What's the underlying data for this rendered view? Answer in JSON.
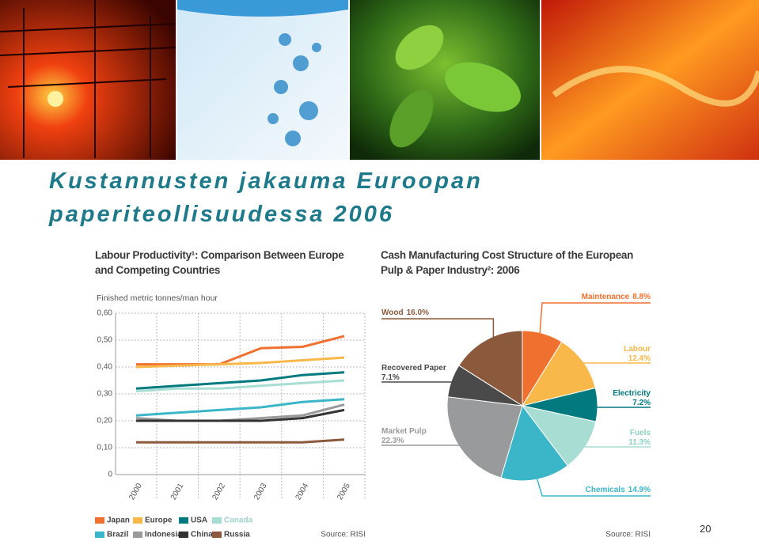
{
  "slide": {
    "title": "Kustannusten jakauma Euroopan paperiteollisuudessa 2006",
    "page_number": "20"
  },
  "chart_data": [
    {
      "type": "line",
      "title": "Labour Productivity¹: Comparison Between Europe and Competing Countries",
      "y_label": "Finished metric tonnes/man hour",
      "categories": [
        "2000",
        "2001",
        "2002",
        "2003",
        "2004",
        "2005"
      ],
      "ylim": [
        0,
        0.6
      ],
      "yticks": [
        0,
        {
          "value": 0.1,
          "label": "0,10"
        },
        {
          "value": 0.2,
          "label": "0,20"
        },
        {
          "value": 0.3,
          "label": "0,30"
        },
        {
          "value": 0.4,
          "label": "0,40"
        },
        {
          "value": 0.5,
          "label": "0,50"
        },
        {
          "value": 0.6,
          "label": "0,60"
        }
      ],
      "grid": true,
      "series": [
        {
          "name": "Japan",
          "color": "#f07030",
          "values": [
            0.41,
            0.41,
            0.41,
            0.47,
            0.475,
            0.515
          ]
        },
        {
          "name": "Europe",
          "color": "#f8b84a",
          "values": [
            0.4,
            0.405,
            0.41,
            0.415,
            0.425,
            0.435
          ]
        },
        {
          "name": "USA",
          "color": "#007a7e",
          "values": [
            0.32,
            0.33,
            0.34,
            0.35,
            0.37,
            0.38
          ]
        },
        {
          "name": "Canada",
          "color": "#a8ddd4",
          "values": [
            0.31,
            0.32,
            0.32,
            0.33,
            0.34,
            0.35
          ]
        },
        {
          "name": "Brazil",
          "color": "#3ab6c8",
          "values": [
            0.22,
            0.23,
            0.24,
            0.25,
            0.27,
            0.28
          ]
        },
        {
          "name": "Indonesia",
          "color": "#999a9c",
          "values": [
            0.21,
            0.2,
            0.2,
            0.21,
            0.22,
            0.26
          ]
        },
        {
          "name": "China",
          "color": "#333333",
          "values": [
            0.2,
            0.2,
            0.2,
            0.2,
            0.21,
            0.24
          ]
        },
        {
          "name": "Russia",
          "color": "#8b5a3c",
          "values": [
            0.12,
            0.12,
            0.12,
            0.12,
            0.12,
            0.13
          ]
        }
      ],
      "source": "Source: RISI"
    },
    {
      "type": "pie",
      "title": "Cash Manufacturing Cost Structure of the European Pulp & Paper Industry²: 2006",
      "categories": [
        "Maintenance",
        "Labour",
        "Electricity",
        "Fuels",
        "Chemicals",
        "Market Pulp",
        "Recovered Paper",
        "Wood"
      ],
      "values": [
        8.8,
        12.4,
        7.2,
        11.3,
        14.9,
        22.3,
        7.1,
        16
      ],
      "value_labels": [
        "8.8%",
        "12.4%",
        "7.2%",
        "11.3%",
        "14.9%",
        "22.3%",
        "7.1%",
        "16.0%"
      ],
      "colors": [
        "#f07030",
        "#f8b84a",
        "#007a7e",
        "#a8ddd4",
        "#3ab6c8",
        "#999a9c",
        "#4a4a4a",
        "#8b5a3c"
      ],
      "source": "Source: RISI"
    }
  ]
}
